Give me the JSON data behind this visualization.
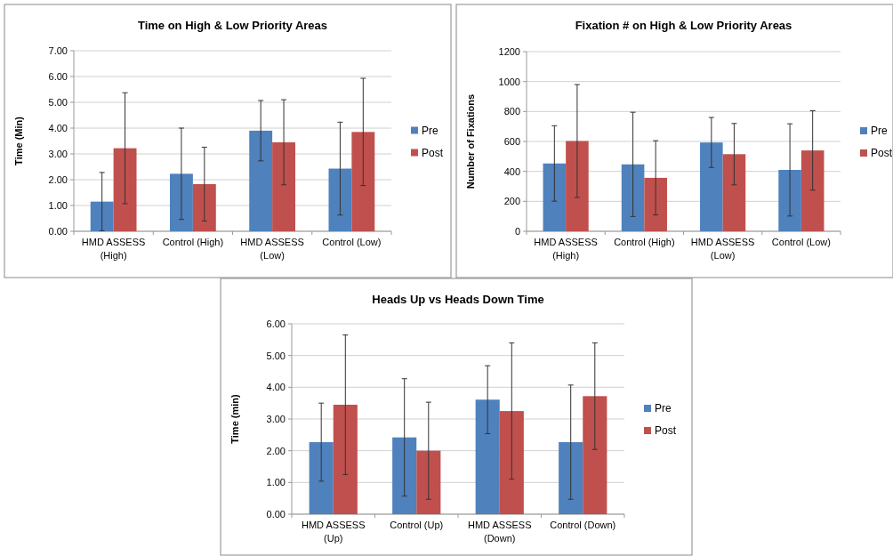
{
  "chart_data": [
    {
      "type": "bar",
      "title": "Time on High & Low Priority Areas",
      "ylabel": "Time (Min)",
      "categories": [
        "HMD ASSESS (High)",
        "Control (High)",
        "HMD ASSESS (Low)",
        "Control (Low)"
      ],
      "series": [
        {
          "name": "Pre",
          "color": "#4f81bd",
          "values": [
            1.15,
            2.23,
            3.9,
            2.43
          ],
          "errors": [
            1.13,
            1.77,
            1.17,
            1.8
          ]
        },
        {
          "name": "Post",
          "color": "#c0504d",
          "values": [
            3.22,
            1.83,
            3.45,
            3.85
          ],
          "errors": [
            2.15,
            1.43,
            1.65,
            2.08
          ]
        }
      ],
      "ylim": [
        0,
        7
      ],
      "yticks": [
        {
          "value": 0,
          "label": "0.00"
        },
        {
          "value": 1,
          "label": "1.00"
        },
        {
          "value": 2,
          "label": "2.00"
        },
        {
          "value": 3,
          "label": "3.00"
        },
        {
          "value": 4,
          "label": "4.00"
        },
        {
          "value": 5,
          "label": "5.00"
        },
        {
          "value": 6,
          "label": "6.00"
        },
        {
          "value": 7,
          "label": "7.00"
        }
      ],
      "grid": "y",
      "legend": "right"
    },
    {
      "type": "bar",
      "title": "Fixation # on High & Low  Priority Areas",
      "ylabel": "Number of Fixations",
      "categories": [
        "HMD ASSESS (High)",
        "Control (High)",
        "HMD ASSESS (Low)",
        "Control (Low)"
      ],
      "series": [
        {
          "name": "Pre",
          "color": "#4f81bd",
          "values": [
            453,
            447,
            593,
            410
          ],
          "errors": [
            252,
            348,
            167,
            308
          ]
        },
        {
          "name": "Post",
          "color": "#c0504d",
          "values": [
            603,
            357,
            515,
            540
          ],
          "errors": [
            377,
            248,
            205,
            265
          ]
        }
      ],
      "ylim": [
        0,
        1200
      ],
      "yticks": [
        0,
        200,
        400,
        600,
        800,
        1000,
        1200
      ],
      "grid": "y",
      "legend": "right"
    },
    {
      "type": "bar",
      "title": "Heads Up vs Heads Down Time",
      "ylabel": "Time (min)",
      "categories": [
        "HMD ASSESS (Up)",
        "Control (Up)",
        "HMD ASSESS (Down)",
        "Control (Down)"
      ],
      "series": [
        {
          "name": "Pre",
          "color": "#4f81bd",
          "values": [
            2.27,
            2.42,
            3.61,
            2.27
          ],
          "errors": [
            1.23,
            1.85,
            1.07,
            1.8
          ]
        },
        {
          "name": "Post",
          "color": "#c0504d",
          "values": [
            3.45,
            2.0,
            3.25,
            3.72
          ],
          "errors": [
            2.2,
            1.53,
            2.15,
            1.68
          ]
        }
      ],
      "ylim": [
        0,
        6
      ],
      "yticks": [
        {
          "value": 0,
          "label": "0.00"
        },
        {
          "value": 1,
          "label": "1.00"
        },
        {
          "value": 2,
          "label": "2.00"
        },
        {
          "value": 3,
          "label": "3.00"
        },
        {
          "value": 4,
          "label": "4.00"
        },
        {
          "value": 5,
          "label": "5.00"
        },
        {
          "value": 6,
          "label": "6.00"
        }
      ],
      "grid": "y",
      "legend": "right"
    }
  ]
}
